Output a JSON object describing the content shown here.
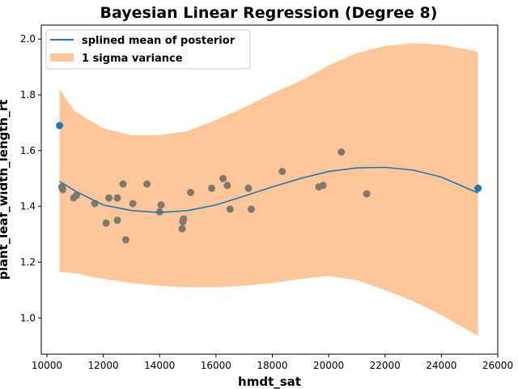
{
  "chart_data": {
    "type": "scatter",
    "title": "Bayesian Linear Regression (Degree 8)",
    "xlabel": "hmdt_sat",
    "ylabel": "plant_leaf_width_length_rt",
    "xlim": [
      9800,
      26000
    ],
    "ylim": [
      0.87,
      2.05
    ],
    "xticks": [
      10000,
      12000,
      14000,
      16000,
      18000,
      20000,
      22000,
      24000,
      26000
    ],
    "yticks": [
      1.0,
      1.2,
      1.4,
      1.6,
      1.8,
      2.0
    ],
    "grid": false,
    "legend_position": "top-left",
    "colors": {
      "mean_line": "#1f77b4",
      "variance_band": "#ffc799",
      "points": "#1f77b4",
      "points_overlap": "#7a7a6e"
    },
    "series": [
      {
        "name": "splined mean of posterior",
        "kind": "line",
        "x": [
          10450,
          11000,
          12000,
          13000,
          14000,
          15000,
          16000,
          17000,
          18000,
          19000,
          20000,
          21000,
          22000,
          23000,
          24000,
          25300
        ],
        "y": [
          1.49,
          1.455,
          1.405,
          1.385,
          1.378,
          1.385,
          1.405,
          1.437,
          1.47,
          1.5,
          1.525,
          1.538,
          1.54,
          1.53,
          1.505,
          1.448
        ]
      },
      {
        "name": "1 sigma variance",
        "kind": "band",
        "x": [
          10450,
          11000,
          12000,
          13000,
          14000,
          15000,
          16000,
          17000,
          18000,
          19000,
          20000,
          21000,
          22000,
          23000,
          24000,
          25300
        ],
        "upper": [
          1.82,
          1.74,
          1.68,
          1.655,
          1.655,
          1.67,
          1.71,
          1.755,
          1.805,
          1.85,
          1.905,
          1.95,
          1.975,
          1.985,
          1.98,
          1.955
        ],
        "lower": [
          1.165,
          1.16,
          1.14,
          1.125,
          1.115,
          1.11,
          1.11,
          1.115,
          1.125,
          1.14,
          1.15,
          1.135,
          1.1,
          1.06,
          1.01,
          0.935
        ]
      }
    ],
    "points": [
      {
        "x": 10450,
        "y": 1.69
      },
      {
        "x": 10530,
        "y": 1.47
      },
      {
        "x": 10560,
        "y": 1.46
      },
      {
        "x": 10950,
        "y": 1.43
      },
      {
        "x": 11050,
        "y": 1.44
      },
      {
        "x": 11700,
        "y": 1.41
      },
      {
        "x": 12100,
        "y": 1.34
      },
      {
        "x": 12200,
        "y": 1.43
      },
      {
        "x": 12500,
        "y": 1.35
      },
      {
        "x": 12500,
        "y": 1.43
      },
      {
        "x": 12700,
        "y": 1.48
      },
      {
        "x": 12800,
        "y": 1.28
      },
      {
        "x": 13050,
        "y": 1.41
      },
      {
        "x": 13550,
        "y": 1.48
      },
      {
        "x": 14000,
        "y": 1.38
      },
      {
        "x": 14050,
        "y": 1.405
      },
      {
        "x": 14800,
        "y": 1.32
      },
      {
        "x": 14820,
        "y": 1.345
      },
      {
        "x": 14850,
        "y": 1.355
      },
      {
        "x": 15100,
        "y": 1.45
      },
      {
        "x": 15850,
        "y": 1.465
      },
      {
        "x": 16250,
        "y": 1.5
      },
      {
        "x": 16400,
        "y": 1.475
      },
      {
        "x": 16500,
        "y": 1.39
      },
      {
        "x": 17150,
        "y": 1.465
      },
      {
        "x": 17250,
        "y": 1.39
      },
      {
        "x": 18350,
        "y": 1.525
      },
      {
        "x": 19650,
        "y": 1.47
      },
      {
        "x": 19800,
        "y": 1.475
      },
      {
        "x": 20450,
        "y": 1.595
      },
      {
        "x": 21350,
        "y": 1.445
      },
      {
        "x": 25300,
        "y": 1.465
      }
    ]
  }
}
